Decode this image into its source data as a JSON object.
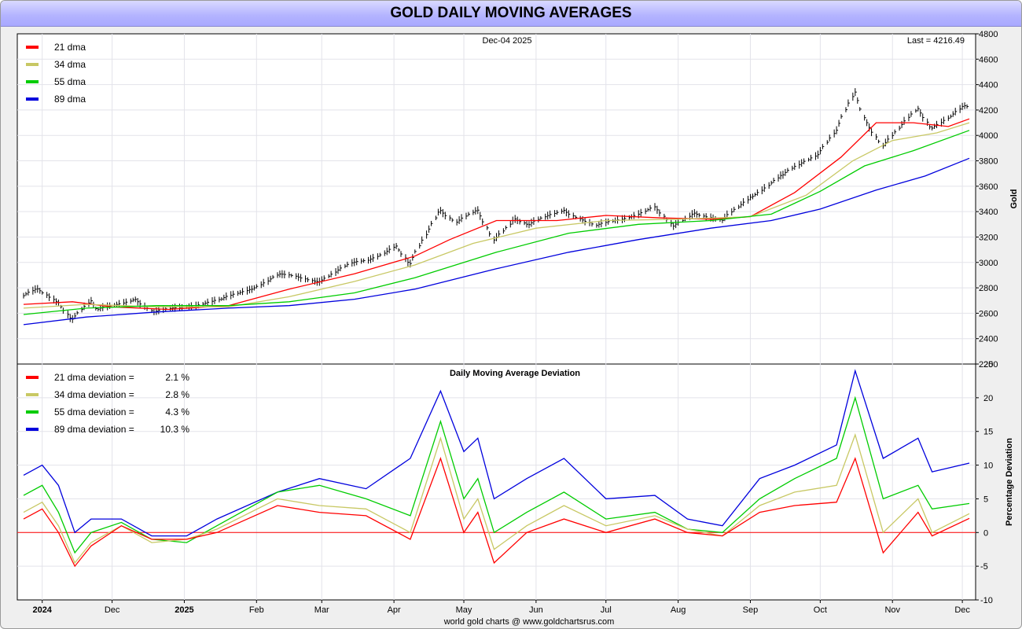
{
  "title": "GOLD DAILY MOVING AVERAGES",
  "footer": "world gold charts @ www.goldchartsrus.com",
  "colors": {
    "dma21": "#ff0000",
    "dma34": "#c8c864",
    "dma55": "#00cc00",
    "dma89": "#0000dd",
    "price": "#000000",
    "axis_label": "#0000dd",
    "zero_line": "#ff0000"
  },
  "x_axis": {
    "labels": [
      "2024",
      "Dec",
      "2025",
      "Feb",
      "Mar",
      "Apr",
      "May",
      "Jun",
      "Jul",
      "Aug",
      "Sep",
      "Oct",
      "Nov",
      "Dec"
    ],
    "bold": [
      true,
      false,
      true,
      false,
      false,
      false,
      false,
      false,
      false,
      false,
      false,
      false,
      false,
      false
    ]
  },
  "chart_data": [
    {
      "type": "line",
      "title": "",
      "date_label": "Dec-04  2025",
      "last_label": "Last = 4216.49",
      "ylabel": "Gold",
      "ylim": [
        2200,
        4800
      ],
      "y_ticks": [
        2200,
        2400,
        2600,
        2800,
        3000,
        3200,
        3400,
        3600,
        3800,
        4000,
        4200,
        4400,
        4600,
        4800
      ],
      "x_range": [
        "2024-10-24",
        "2025-12-04"
      ],
      "price_points": [
        [
          "2024-10-24",
          2735
        ],
        [
          "2024-10-30",
          2780
        ],
        [
          "2024-11-08",
          2690
        ],
        [
          "2024-11-14",
          2565
        ],
        [
          "2024-11-22",
          2690
        ],
        [
          "2024-11-25",
          2620
        ],
        [
          "2024-12-11",
          2720
        ],
        [
          "2024-12-19",
          2600
        ],
        [
          "2025-01-02",
          2660
        ],
        [
          "2025-01-17",
          2700
        ],
        [
          "2025-01-30",
          2800
        ],
        [
          "2025-02-11",
          2900
        ],
        [
          "2025-02-28",
          2860
        ],
        [
          "2025-03-14",
          2985
        ],
        [
          "2025-03-21",
          3020
        ],
        [
          "2025-04-02",
          3130
        ],
        [
          "2025-04-08",
          2980
        ],
        [
          "2025-04-21",
          3420
        ],
        [
          "2025-04-28",
          3320
        ],
        [
          "2025-05-07",
          3400
        ],
        [
          "2025-05-14",
          3180
        ],
        [
          "2025-05-23",
          3350
        ],
        [
          "2025-05-29",
          3290
        ],
        [
          "2025-06-13",
          3420
        ],
        [
          "2025-06-27",
          3280
        ],
        [
          "2025-07-22",
          3430
        ],
        [
          "2025-07-30",
          3280
        ],
        [
          "2025-08-08",
          3400
        ],
        [
          "2025-08-20",
          3320
        ],
        [
          "2025-09-02",
          3530
        ],
        [
          "2025-09-15",
          3680
        ],
        [
          "2025-09-30",
          3860
        ],
        [
          "2025-10-08",
          4040
        ],
        [
          "2025-10-16",
          4330
        ],
        [
          "2025-10-21",
          4100
        ],
        [
          "2025-10-28",
          3930
        ],
        [
          "2025-11-12",
          4200
        ],
        [
          "2025-11-18",
          4060
        ],
        [
          "2025-11-26",
          4160
        ],
        [
          "2025-12-02",
          4230
        ],
        [
          "2025-12-04",
          4216
        ]
      ],
      "series": [
        {
          "name": "21 dma",
          "points": [
            [
              "2024-10-24",
              2670
            ],
            [
              "2024-11-14",
              2690
            ],
            [
              "2024-12-01",
              2650
            ],
            [
              "2024-12-25",
              2630
            ],
            [
              "2025-01-20",
              2660
            ],
            [
              "2025-02-15",
              2790
            ],
            [
              "2025-03-15",
              2910
            ],
            [
              "2025-04-10",
              3050
            ],
            [
              "2025-04-25",
              3180
            ],
            [
              "2025-05-15",
              3330
            ],
            [
              "2025-06-10",
              3330
            ],
            [
              "2025-07-01",
              3370
            ],
            [
              "2025-07-25",
              3350
            ],
            [
              "2025-08-15",
              3340
            ],
            [
              "2025-09-01",
              3360
            ],
            [
              "2025-09-20",
              3550
            ],
            [
              "2025-10-10",
              3830
            ],
            [
              "2025-10-25",
              4100
            ],
            [
              "2025-11-10",
              4100
            ],
            [
              "2025-11-25",
              4070
            ],
            [
              "2025-12-04",
              4130
            ]
          ]
        },
        {
          "name": "34 dma",
          "points": [
            [
              "2024-10-24",
              2640
            ],
            [
              "2024-11-20",
              2670
            ],
            [
              "2024-12-20",
              2650
            ],
            [
              "2025-01-20",
              2650
            ],
            [
              "2025-02-15",
              2730
            ],
            [
              "2025-03-15",
              2850
            ],
            [
              "2025-04-10",
              2980
            ],
            [
              "2025-05-05",
              3150
            ],
            [
              "2025-06-01",
              3270
            ],
            [
              "2025-07-01",
              3330
            ],
            [
              "2025-08-01",
              3340
            ],
            [
              "2025-09-01",
              3360
            ],
            [
              "2025-09-25",
              3530
            ],
            [
              "2025-10-15",
              3800
            ],
            [
              "2025-11-01",
              3960
            ],
            [
              "2025-11-20",
              4020
            ],
            [
              "2025-12-04",
              4100
            ]
          ]
        },
        {
          "name": "55 dma",
          "points": [
            [
              "2024-10-24",
              2590
            ],
            [
              "2024-11-20",
              2640
            ],
            [
              "2024-12-20",
              2660
            ],
            [
              "2025-01-20",
              2660
            ],
            [
              "2025-02-15",
              2690
            ],
            [
              "2025-03-15",
              2760
            ],
            [
              "2025-04-10",
              2880
            ],
            [
              "2025-05-15",
              3080
            ],
            [
              "2025-06-15",
              3230
            ],
            [
              "2025-07-15",
              3300
            ],
            [
              "2025-08-15",
              3330
            ],
            [
              "2025-09-10",
              3380
            ],
            [
              "2025-10-01",
              3560
            ],
            [
              "2025-10-20",
              3760
            ],
            [
              "2025-11-10",
              3880
            ],
            [
              "2025-12-04",
              4040
            ]
          ]
        },
        {
          "name": "89 dma",
          "points": [
            [
              "2024-10-24",
              2510
            ],
            [
              "2024-11-20",
              2570
            ],
            [
              "2024-12-20",
              2610
            ],
            [
              "2025-01-20",
              2640
            ],
            [
              "2025-02-15",
              2660
            ],
            [
              "2025-03-15",
              2710
            ],
            [
              "2025-04-10",
              2790
            ],
            [
              "2025-05-15",
              2950
            ],
            [
              "2025-06-15",
              3080
            ],
            [
              "2025-07-15",
              3180
            ],
            [
              "2025-08-15",
              3270
            ],
            [
              "2025-09-10",
              3330
            ],
            [
              "2025-10-01",
              3420
            ],
            [
              "2025-10-25",
              3570
            ],
            [
              "2025-11-15",
              3680
            ],
            [
              "2025-12-04",
              3820
            ]
          ]
        }
      ],
      "legend": {
        "position": "top-left",
        "entries": [
          "21 dma",
          "34 dma",
          "55 dma",
          "89 dma"
        ]
      }
    },
    {
      "type": "line",
      "title": "Daily Moving Average Deviation",
      "ylabel": "Percentage Deviation",
      "ylim": [
        -10,
        25
      ],
      "y_ticks": [
        -10,
        -5,
        0,
        5,
        10,
        15,
        20,
        25
      ],
      "x_range": [
        "2024-10-24",
        "2025-12-04"
      ],
      "series": [
        {
          "name": "21 dma deviation",
          "value": "2.1 %",
          "points": [
            [
              "2024-10-24",
              2
            ],
            [
              "2024-11-01",
              3.5
            ],
            [
              "2024-11-08",
              0
            ],
            [
              "2024-11-15",
              -5
            ],
            [
              "2024-11-22",
              -2
            ],
            [
              "2024-12-05",
              1
            ],
            [
              "2024-12-18",
              -1
            ],
            [
              "2025-01-02",
              -1
            ],
            [
              "2025-01-15",
              0
            ],
            [
              "2025-02-10",
              4
            ],
            [
              "2025-02-28",
              3
            ],
            [
              "2025-03-20",
              2.5
            ],
            [
              "2025-04-08",
              -1
            ],
            [
              "2025-04-21",
              11
            ],
            [
              "2025-05-01",
              0
            ],
            [
              "2025-05-07",
              3
            ],
            [
              "2025-05-14",
              -4.5
            ],
            [
              "2025-05-28",
              0
            ],
            [
              "2025-06-13",
              2
            ],
            [
              "2025-07-01",
              0
            ],
            [
              "2025-07-22",
              2
            ],
            [
              "2025-08-05",
              0
            ],
            [
              "2025-08-20",
              -0.5
            ],
            [
              "2025-09-05",
              3
            ],
            [
              "2025-09-20",
              4
            ],
            [
              "2025-10-08",
              4.5
            ],
            [
              "2025-10-16",
              11
            ],
            [
              "2025-10-28",
              -3
            ],
            [
              "2025-11-12",
              3
            ],
            [
              "2025-11-18",
              -0.5
            ],
            [
              "2025-12-04",
              2.1
            ]
          ]
        },
        {
          "name": "34 dma deviation",
          "value": "2.8 %",
          "points": [
            [
              "2024-10-24",
              3
            ],
            [
              "2024-11-01",
              4.5
            ],
            [
              "2024-11-08",
              1
            ],
            [
              "2024-11-15",
              -4.5
            ],
            [
              "2024-11-22",
              -1.5
            ],
            [
              "2024-12-05",
              1
            ],
            [
              "2024-12-18",
              -1.5
            ],
            [
              "2025-01-02",
              -1
            ],
            [
              "2025-01-15",
              0.5
            ],
            [
              "2025-02-10",
              5
            ],
            [
              "2025-02-28",
              4
            ],
            [
              "2025-03-20",
              3.5
            ],
            [
              "2025-04-08",
              0
            ],
            [
              "2025-04-21",
              14
            ],
            [
              "2025-05-01",
              2
            ],
            [
              "2025-05-07",
              5
            ],
            [
              "2025-05-14",
              -2.5
            ],
            [
              "2025-05-28",
              1
            ],
            [
              "2025-06-13",
              4
            ],
            [
              "2025-07-01",
              1
            ],
            [
              "2025-07-22",
              2.5
            ],
            [
              "2025-08-05",
              0.5
            ],
            [
              "2025-08-20",
              -0.5
            ],
            [
              "2025-09-05",
              4
            ],
            [
              "2025-09-20",
              6
            ],
            [
              "2025-10-08",
              7
            ],
            [
              "2025-10-16",
              14.5
            ],
            [
              "2025-10-28",
              0
            ],
            [
              "2025-11-12",
              5
            ],
            [
              "2025-11-18",
              0
            ],
            [
              "2025-12-04",
              2.8
            ]
          ]
        },
        {
          "name": "55 dma deviation",
          "value": "4.3 %",
          "points": [
            [
              "2024-10-24",
              5.5
            ],
            [
              "2024-11-01",
              7
            ],
            [
              "2024-11-08",
              3
            ],
            [
              "2024-11-15",
              -3
            ],
            [
              "2024-11-22",
              0
            ],
            [
              "2024-12-05",
              1.5
            ],
            [
              "2024-12-18",
              -1
            ],
            [
              "2025-01-02",
              -1.5
            ],
            [
              "2025-01-15",
              1
            ],
            [
              "2025-02-10",
              6
            ],
            [
              "2025-02-28",
              7
            ],
            [
              "2025-03-20",
              5
            ],
            [
              "2025-04-08",
              2.5
            ],
            [
              "2025-04-21",
              16.5
            ],
            [
              "2025-05-01",
              5
            ],
            [
              "2025-05-07",
              8
            ],
            [
              "2025-05-14",
              0
            ],
            [
              "2025-05-28",
              3
            ],
            [
              "2025-06-13",
              6
            ],
            [
              "2025-07-01",
              2
            ],
            [
              "2025-07-22",
              3
            ],
            [
              "2025-08-05",
              0.5
            ],
            [
              "2025-08-20",
              0
            ],
            [
              "2025-09-05",
              5
            ],
            [
              "2025-09-20",
              8
            ],
            [
              "2025-10-08",
              11
            ],
            [
              "2025-10-16",
              20
            ],
            [
              "2025-10-28",
              5
            ],
            [
              "2025-11-12",
              7
            ],
            [
              "2025-11-18",
              3.5
            ],
            [
              "2025-12-04",
              4.3
            ]
          ]
        },
        {
          "name": "89 dma deviation",
          "value": "10.3 %",
          "points": [
            [
              "2024-10-24",
              8.5
            ],
            [
              "2024-11-01",
              10
            ],
            [
              "2024-11-08",
              7
            ],
            [
              "2024-11-15",
              0
            ],
            [
              "2024-11-22",
              2
            ],
            [
              "2024-12-05",
              2
            ],
            [
              "2024-12-18",
              -0.5
            ],
            [
              "2025-01-02",
              -0.5
            ],
            [
              "2025-01-15",
              2
            ],
            [
              "2025-02-10",
              6
            ],
            [
              "2025-02-28",
              8
            ],
            [
              "2025-03-20",
              6.5
            ],
            [
              "2025-04-08",
              11
            ],
            [
              "2025-04-21",
              21
            ],
            [
              "2025-05-01",
              12
            ],
            [
              "2025-05-07",
              14
            ],
            [
              "2025-05-14",
              5
            ],
            [
              "2025-05-28",
              8
            ],
            [
              "2025-06-13",
              11
            ],
            [
              "2025-07-01",
              5
            ],
            [
              "2025-07-22",
              5.5
            ],
            [
              "2025-08-05",
              2
            ],
            [
              "2025-08-20",
              1
            ],
            [
              "2025-09-05",
              8
            ],
            [
              "2025-09-20",
              10
            ],
            [
              "2025-10-08",
              13
            ],
            [
              "2025-10-16",
              24
            ],
            [
              "2025-10-28",
              11
            ],
            [
              "2025-11-12",
              14
            ],
            [
              "2025-11-18",
              9
            ],
            [
              "2025-12-04",
              10.3
            ]
          ]
        }
      ],
      "legend": {
        "position": "top-left",
        "entries": [
          "21 dma deviation =",
          "34 dma deviation =",
          "55 dma deviation =",
          "89 dma deviation ="
        ]
      },
      "zero_line": 0
    }
  ]
}
